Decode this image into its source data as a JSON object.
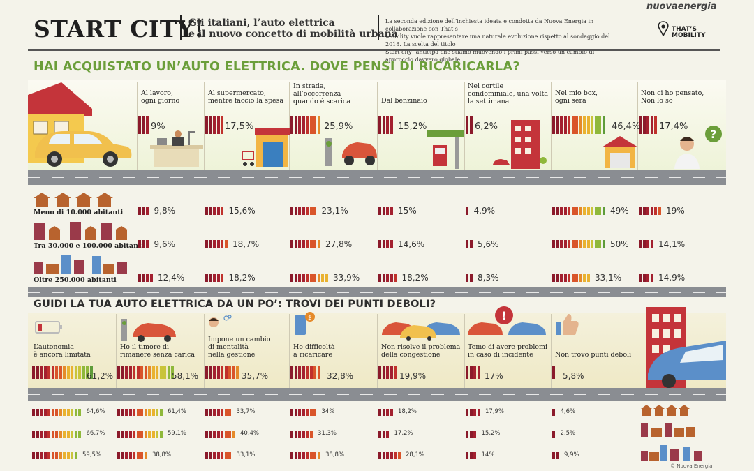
{
  "header": {
    "title": "START CITY!",
    "subtitle_line1": "Gli italiani, l’auto elettrica",
    "subtitle_line2": "e il nuovo concetto di mobilità urbana",
    "intro_line1": "La seconda edizione dell’inchiesta ideata e condotta da Nuova Energia in collaborazione con That’s",
    "intro_line2": "Mobility vuole rappresentare una naturale evoluzione rispetto al sondaggio del 2018. La scelta del titolo",
    "intro_line3": "Start city! anticipa che stiamo muovendo i primi passi verso un cambio di approccio davvero globale.",
    "brand": "nuovaenergia",
    "logo_line1": "THAT’S",
    "logo_line2": "MOBILITY"
  },
  "section1": {
    "question": "HAI ACQUISTATO UN’AUTO ELETTRICA. DOVE PENSI DI RICARICARLA?",
    "options": [
      {
        "label1": "Al lavoro,",
        "label2": "ogni giorno",
        "label3": "",
        "value": "9%",
        "num": 9
      },
      {
        "label1": "Al supermercato,",
        "label2": "mentre faccio la spesa",
        "label3": "",
        "value": "17,5%",
        "num": 17.5
      },
      {
        "label1": "In strada,",
        "label2": "all’occorrenza",
        "label3": "quando è scarica",
        "value": "25,9%",
        "num": 25.9
      },
      {
        "label1": "Dal benzinaio",
        "label2": "",
        "label3": "",
        "value": "15,2%",
        "num": 15.2
      },
      {
        "label1": "Nel cortile",
        "label2": "condominiale, una volta",
        "label3": "la settimana",
        "value": "6,2%",
        "num": 6.2
      },
      {
        "label1": "Nel mio box,",
        "label2": "ogni sera",
        "label3": "",
        "value": "46,4%",
        "num": 46.4
      },
      {
        "label1": "Non ci ho pensato,",
        "label2": "Non lo so",
        "label3": "",
        "value": "17,4%",
        "num": 17.4
      }
    ],
    "city_labels": [
      "Meno di 10.000 abitanti",
      "Tra 30.000 e 100.000 abitanti",
      "Oltre 250.000 abitanti"
    ],
    "breakdown": [
      [
        {
          "v": "9,8%",
          "n": 9.8
        },
        {
          "v": "15,6%",
          "n": 15.6
        },
        {
          "v": "23,1%",
          "n": 23.1
        },
        {
          "v": "15%",
          "n": 15
        },
        {
          "v": "4,9%",
          "n": 4.9
        },
        {
          "v": "49%",
          "n": 49
        },
        {
          "v": "19%",
          "n": 19
        }
      ],
      [
        {
          "v": "9,6%",
          "n": 9.6
        },
        {
          "v": "18,7%",
          "n": 18.7
        },
        {
          "v": "27,8%",
          "n": 27.8
        },
        {
          "v": "14,6%",
          "n": 14.6
        },
        {
          "v": "5,6%",
          "n": 5.6
        },
        {
          "v": "50%",
          "n": 50
        },
        {
          "v": "14,1%",
          "n": 14.1
        }
      ],
      [
        {
          "v": "12,4%",
          "n": 12.4
        },
        {
          "v": "18,2%",
          "n": 18.2
        },
        {
          "v": "33,9%",
          "n": 33.9
        },
        {
          "v": "18,2%",
          "n": 18.2
        },
        {
          "v": "8,3%",
          "n": 8.3
        },
        {
          "v": "33,1%",
          "n": 33.1
        },
        {
          "v": "14,9%",
          "n": 14.9
        }
      ]
    ]
  },
  "section2": {
    "question": "GUIDI LA TUA AUTO ELETTRICA DA UN PO’: TROVI DEI PUNTI DEBOLI?",
    "options": [
      {
        "label1": "L’autonomia",
        "label2": "è ancora limitata",
        "label3": "",
        "value": "61,2%",
        "num": 61.2
      },
      {
        "label1": "Ho il timore di",
        "label2": "rimanere senza carica",
        "label3": "",
        "value": "58,1%",
        "num": 58.1
      },
      {
        "label1": "Impone un cambio",
        "label2": "di mentalità",
        "label3": "nella gestione",
        "value": "35,7%",
        "num": 35.7
      },
      {
        "label1": "Ho difficoltà",
        "label2": "a ricaricare",
        "label3": "",
        "value": "32,8%",
        "num": 32.8
      },
      {
        "label1": "Non risolve il problema",
        "label2": "della congestione",
        "label3": "",
        "value": "19,9%",
        "num": 19.9
      },
      {
        "label1": "Temo di avere problemi",
        "label2": "in caso di incidente",
        "label3": "",
        "value": "17%",
        "num": 17
      },
      {
        "label1": "Non trovo punti deboli",
        "label2": "",
        "label3": "",
        "value": "5,8%",
        "num": 5.8
      }
    ],
    "breakdown": [
      [
        {
          "v": "64,6%",
          "n": 64.6
        },
        {
          "v": "61,4%",
          "n": 61.4
        },
        {
          "v": "33,7%",
          "n": 33.7
        },
        {
          "v": "34%",
          "n": 34
        },
        {
          "v": "18,2%",
          "n": 18.2
        },
        {
          "v": "17,9%",
          "n": 17.9
        },
        {
          "v": "4,6%",
          "n": 4.6
        }
      ],
      [
        {
          "v": "66,7%",
          "n": 66.7
        },
        {
          "v": "59,1%",
          "n": 59.1
        },
        {
          "v": "40,4%",
          "n": 40.4
        },
        {
          "v": "31,3%",
          "n": 31.3
        },
        {
          "v": "17,2%",
          "n": 17.2
        },
        {
          "v": "15,2%",
          "n": 15.2
        },
        {
          "v": "2,5%",
          "n": 2.5
        }
      ],
      [
        {
          "v": "59,5%",
          "n": 59.5
        },
        {
          "v": "38,8%",
          "n": 38.8
        },
        {
          "v": "33,1%",
          "n": 33.1
        },
        {
          "v": "38,8%",
          "n": 38.8
        },
        {
          "v": "28,1%",
          "n": 28.1
        },
        {
          "v": "14%",
          "n": 14
        },
        {
          "v": "9,9%",
          "n": 9.9
        }
      ]
    ]
  },
  "footer": {
    "credit": "© Nuova Energia"
  },
  "colors": {
    "green_heading": "#6b9e3a",
    "bar_dark": "#8b1a2b",
    "bar_scale": [
      "#8b1a2b",
      "#a3202f",
      "#c0312c",
      "#d9552a",
      "#e58a2a",
      "#e9b230",
      "#c9c43a",
      "#8fb83b",
      "#5e9c3a"
    ]
  }
}
